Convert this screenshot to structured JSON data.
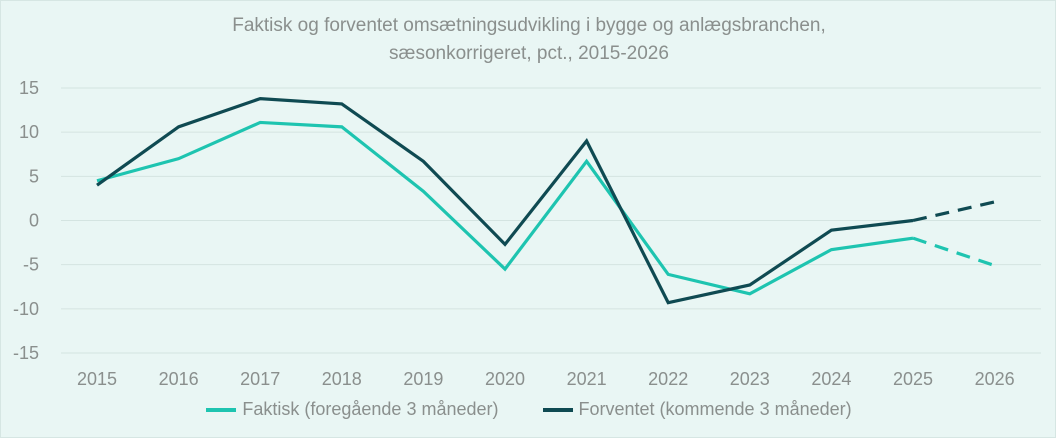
{
  "chart_data": {
    "type": "line",
    "title": "Faktisk og forventet omsætningsudvikling i bygge og anlægsbranchen,",
    "subtitle": "sæsonkorrigeret, pct., 2015-2026",
    "xlabel": "",
    "ylabel": "",
    "categories": [
      "2015",
      "2016",
      "2017",
      "2018",
      "2019",
      "2020",
      "2021",
      "2022",
      "2023",
      "2024",
      "2025",
      "2026"
    ],
    "ylim": [
      -15,
      15
    ],
    "yticks": [
      15,
      10,
      5,
      0,
      -5,
      -10,
      -15
    ],
    "grid": true,
    "legend_position": "bottom",
    "series": [
      {
        "name": "Faktisk (foregående 3 måneder)",
        "color": "#1ec4b0",
        "values": [
          4.5,
          7.0,
          11.1,
          10.6,
          3.3,
          -5.5,
          6.7,
          -6.1,
          -8.3,
          -3.3,
          -2.0,
          -5.1
        ],
        "dashed_from_index": 10
      },
      {
        "name": "Forventet (kommende 3 måneder)",
        "color": "#0f4a52",
        "values": [
          4.0,
          10.6,
          13.8,
          13.2,
          6.7,
          -2.7,
          9.0,
          -9.3,
          -7.3,
          -1.1,
          0.0,
          2.1
        ],
        "dashed_from_index": 10
      }
    ]
  }
}
